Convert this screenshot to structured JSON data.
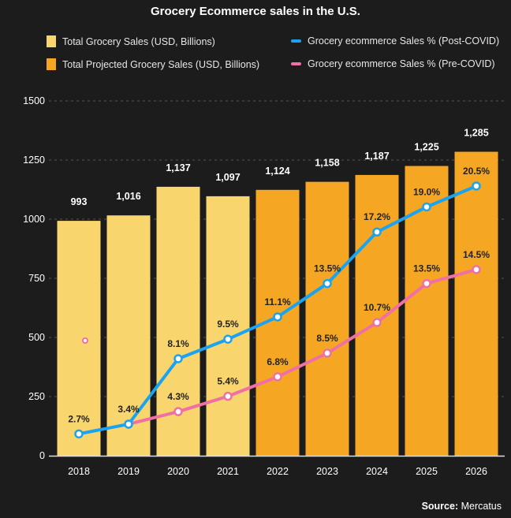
{
  "chart_data": {
    "type": "bar",
    "title": "Grocery Ecommerce sales in the U.S.",
    "categories": [
      "2018",
      "2019",
      "2020",
      "2021",
      "2022",
      "2023",
      "2024",
      "2025",
      "2026"
    ],
    "ylim": [
      0,
      1500
    ],
    "yticks": [
      0,
      250,
      500,
      750,
      1000,
      1250,
      1500
    ],
    "ytick_labels": [
      "0",
      "250",
      "500",
      "750",
      "1000",
      "1250",
      "1500"
    ],
    "grid": true,
    "legend_position": "top",
    "bar_series": [
      {
        "name": "Total Grocery Sales (USD, Billions)",
        "color": "#f8d66d",
        "values": [
          993,
          1016,
          1137,
          1097,
          null,
          null,
          null,
          null,
          null
        ]
      },
      {
        "name": "Total Projected Grocery Sales (USD, Billions)",
        "color": "#f5a623",
        "values": [
          null,
          null,
          null,
          null,
          1124,
          1158,
          1187,
          1225,
          1285
        ]
      }
    ],
    "bar_labels": [
      "993",
      "1,016",
      "1,137",
      "1,097",
      "1,124",
      "1,158",
      "1,187",
      "1,225",
      "1,285"
    ],
    "line_series": [
      {
        "name": "Grocery ecommerce Sales % (Post-COVID)",
        "color": "#1aa3f0",
        "values": [
          2.7,
          3.4,
          8.1,
          9.5,
          11.1,
          13.5,
          17.2,
          19.0,
          20.5
        ],
        "labels": [
          "2.7%",
          "3.4%",
          "8.1%",
          "9.5%",
          "11.1%",
          "13.5%",
          "17.2%",
          "19.0%",
          "20.5%"
        ]
      },
      {
        "name": "Grocery ecommerce Sales % (Pre-COVID)",
        "color": "#f06fa5",
        "values": [
          null,
          3.4,
          4.3,
          5.4,
          6.8,
          8.5,
          10.7,
          13.5,
          14.5
        ],
        "labels": [
          "",
          "",
          "4.3%",
          "5.4%",
          "6.8%",
          "8.5%",
          "10.7%",
          "13.5%",
          "14.5%"
        ],
        "unconnected_points": [
          {
            "x": "2018",
            "y": 9.4
          }
        ]
      }
    ]
  },
  "source": {
    "label": "Source:",
    "value": "Mercatus"
  }
}
